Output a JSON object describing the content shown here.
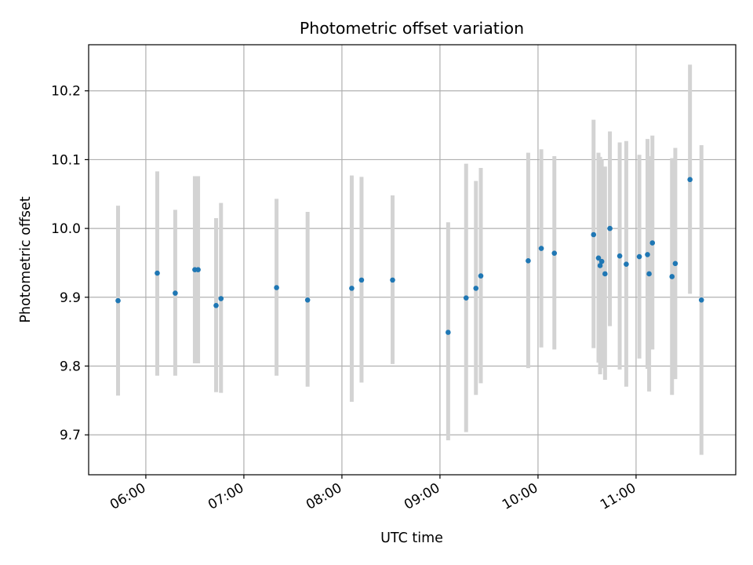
{
  "chart_data": {
    "type": "scatter",
    "title": "Photometric offset variation",
    "xlabel": "UTC time",
    "ylabel": "Photometric offset",
    "x_axis_type": "time",
    "xlim": [
      "05:25",
      "12:01"
    ],
    "ylim": [
      9.642,
      10.267
    ],
    "x_ticks": [
      "06:00",
      "07:00",
      "08:00",
      "09:00",
      "10:00",
      "11:00"
    ],
    "y_ticks": [
      "9.7",
      "9.8",
      "9.9",
      "10.0",
      "10.1",
      "10.2"
    ],
    "grid": true,
    "legend": "none",
    "marker_color": "#1f77b4",
    "errorbar_color": "#d3d3d3",
    "series": [
      {
        "points": [
          {
            "x": "05:43",
            "y": 9.895,
            "ylow": 9.757,
            "yhigh": 10.033
          },
          {
            "x": "06:07",
            "y": 9.935,
            "ylow": 9.786,
            "yhigh": 10.083
          },
          {
            "x": "06:18",
            "y": 9.906,
            "ylow": 9.786,
            "yhigh": 10.027
          },
          {
            "x": "06:30",
            "y": 9.94,
            "ylow": 9.804,
            "yhigh": 10.076
          },
          {
            "x": "06:32",
            "y": 9.94,
            "ylow": 9.804,
            "yhigh": 10.076
          },
          {
            "x": "06:43",
            "y": 9.888,
            "ylow": 9.762,
            "yhigh": 10.015
          },
          {
            "x": "06:46",
            "y": 9.898,
            "ylow": 9.761,
            "yhigh": 10.037
          },
          {
            "x": "07:20",
            "y": 9.914,
            "ylow": 9.786,
            "yhigh": 10.043
          },
          {
            "x": "07:39",
            "y": 9.896,
            "ylow": 9.77,
            "yhigh": 10.024
          },
          {
            "x": "08:06",
            "y": 9.913,
            "ylow": 9.748,
            "yhigh": 10.077
          },
          {
            "x": "08:12",
            "y": 9.925,
            "ylow": 9.776,
            "yhigh": 10.075
          },
          {
            "x": "08:31",
            "y": 9.925,
            "ylow": 9.803,
            "yhigh": 10.048
          },
          {
            "x": "09:05",
            "y": 9.849,
            "ylow": 9.692,
            "yhigh": 10.009
          },
          {
            "x": "09:16",
            "y": 9.899,
            "ylow": 9.704,
            "yhigh": 10.094
          },
          {
            "x": "09:22",
            "y": 9.913,
            "ylow": 9.758,
            "yhigh": 10.069
          },
          {
            "x": "09:25",
            "y": 9.931,
            "ylow": 9.775,
            "yhigh": 10.088
          },
          {
            "x": "09:54",
            "y": 9.953,
            "ylow": 9.797,
            "yhigh": 10.11
          },
          {
            "x": "10:02",
            "y": 9.971,
            "ylow": 9.827,
            "yhigh": 10.115
          },
          {
            "x": "10:10",
            "y": 9.964,
            "ylow": 9.824,
            "yhigh": 10.105
          },
          {
            "x": "10:34",
            "y": 9.991,
            "ylow": 9.826,
            "yhigh": 10.158
          },
          {
            "x": "10:37",
            "y": 9.957,
            "ylow": 9.805,
            "yhigh": 10.11
          },
          {
            "x": "10:38",
            "y": 9.946,
            "ylow": 9.788,
            "yhigh": 10.104
          },
          {
            "x": "10:39",
            "y": 9.952,
            "ylow": 9.797,
            "yhigh": 10.1
          },
          {
            "x": "10:41",
            "y": 9.934,
            "ylow": 9.78,
            "yhigh": 10.09
          },
          {
            "x": "10:44",
            "y": 10.0,
            "ylow": 9.858,
            "yhigh": 10.141
          },
          {
            "x": "10:50",
            "y": 9.96,
            "ylow": 9.795,
            "yhigh": 10.125
          },
          {
            "x": "10:54",
            "y": 9.948,
            "ylow": 9.77,
            "yhigh": 10.127
          },
          {
            "x": "11:02",
            "y": 9.959,
            "ylow": 9.811,
            "yhigh": 10.107
          },
          {
            "x": "11:07",
            "y": 9.962,
            "ylow": 9.796,
            "yhigh": 10.13
          },
          {
            "x": "11:08",
            "y": 9.934,
            "ylow": 9.763,
            "yhigh": 10.105
          },
          {
            "x": "11:10",
            "y": 9.979,
            "ylow": 9.824,
            "yhigh": 10.135
          },
          {
            "x": "11:22",
            "y": 9.93,
            "ylow": 9.758,
            "yhigh": 10.102
          },
          {
            "x": "11:24",
            "y": 9.949,
            "ylow": 9.781,
            "yhigh": 10.117
          },
          {
            "x": "11:33",
            "y": 10.071,
            "ylow": 9.905,
            "yhigh": 10.238
          },
          {
            "x": "11:40",
            "y": 9.896,
            "ylow": 9.671,
            "yhigh": 10.121
          }
        ]
      }
    ]
  }
}
